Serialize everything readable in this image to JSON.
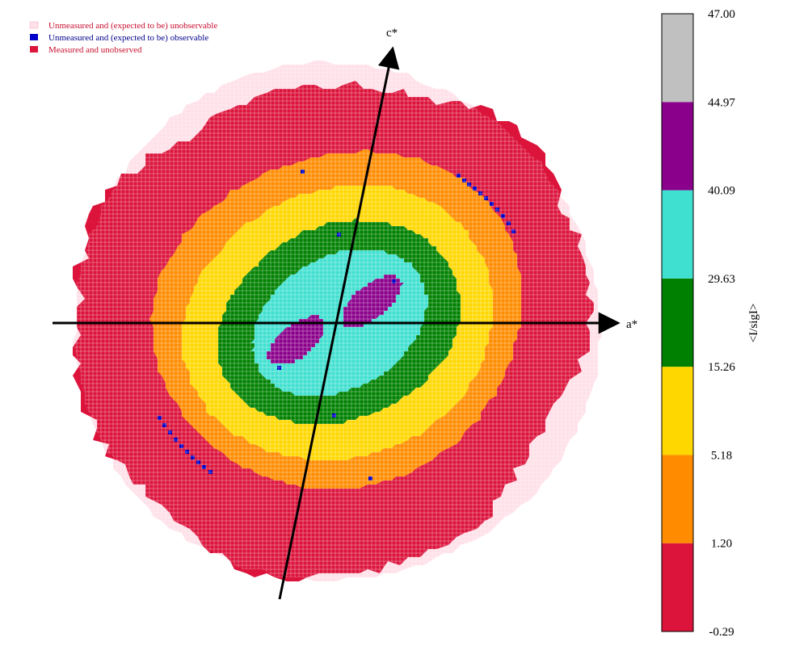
{
  "chart_data": {
    "type": "heatmap",
    "title": "",
    "legend": {
      "placement": "top-left",
      "items": [
        {
          "label": "Unmeasured and (expected to be) unobservable",
          "color": "#ffe0e8",
          "text_color": "#c8102e"
        },
        {
          "label": "Unmeasured and (expected to be) observable",
          "color": "#0000c8",
          "text_color": "#00008b"
        },
        {
          "label": "Measured and unobserved",
          "color": "#dc143c",
          "text_color": "#c8102e"
        }
      ]
    },
    "axes": {
      "a": {
        "label": "a*",
        "angle_deg": 0
      },
      "c": {
        "label": "c*",
        "angle_deg": 75
      }
    },
    "colorbar": {
      "label": "<I/sigI>",
      "ticks": [
        "47.00",
        "44.97",
        "40.09",
        "29.63",
        "15.26",
        "5.18",
        "1.20",
        "-0.29"
      ],
      "bins": [
        {
          "from": -0.29,
          "to": 1.2,
          "color": "#dc143c"
        },
        {
          "from": 1.2,
          "to": 5.18,
          "color": "#ff8c00"
        },
        {
          "from": 5.18,
          "to": 15.26,
          "color": "#ffd700"
        },
        {
          "from": 15.26,
          "to": 29.63,
          "color": "#008000"
        },
        {
          "from": 29.63,
          "to": 40.09,
          "color": "#40e0d0"
        },
        {
          "from": 40.09,
          "to": 44.97,
          "color": "#8b008b"
        },
        {
          "from": 44.97,
          "to": 47.0,
          "color": "#c0c0c0"
        }
      ]
    },
    "rings": [
      {
        "bin_color": "#ffe0e8",
        "meaning": "Unmeasured and (expected to be) unobservable"
      },
      {
        "bin_color": "#dc143c",
        "value_range": [
          -0.29,
          1.2
        ]
      },
      {
        "bin_color": "#ff8c00",
        "value_range": [
          1.2,
          5.18
        ]
      },
      {
        "bin_color": "#ffd700",
        "value_range": [
          5.18,
          15.26
        ]
      },
      {
        "bin_color": "#008000",
        "value_range": [
          15.26,
          29.63
        ]
      },
      {
        "bin_color": "#40e0d0",
        "value_range": [
          29.63,
          40.09
        ]
      },
      {
        "bin_color": "#8b008b",
        "value_range": [
          40.09,
          44.97
        ]
      }
    ]
  }
}
